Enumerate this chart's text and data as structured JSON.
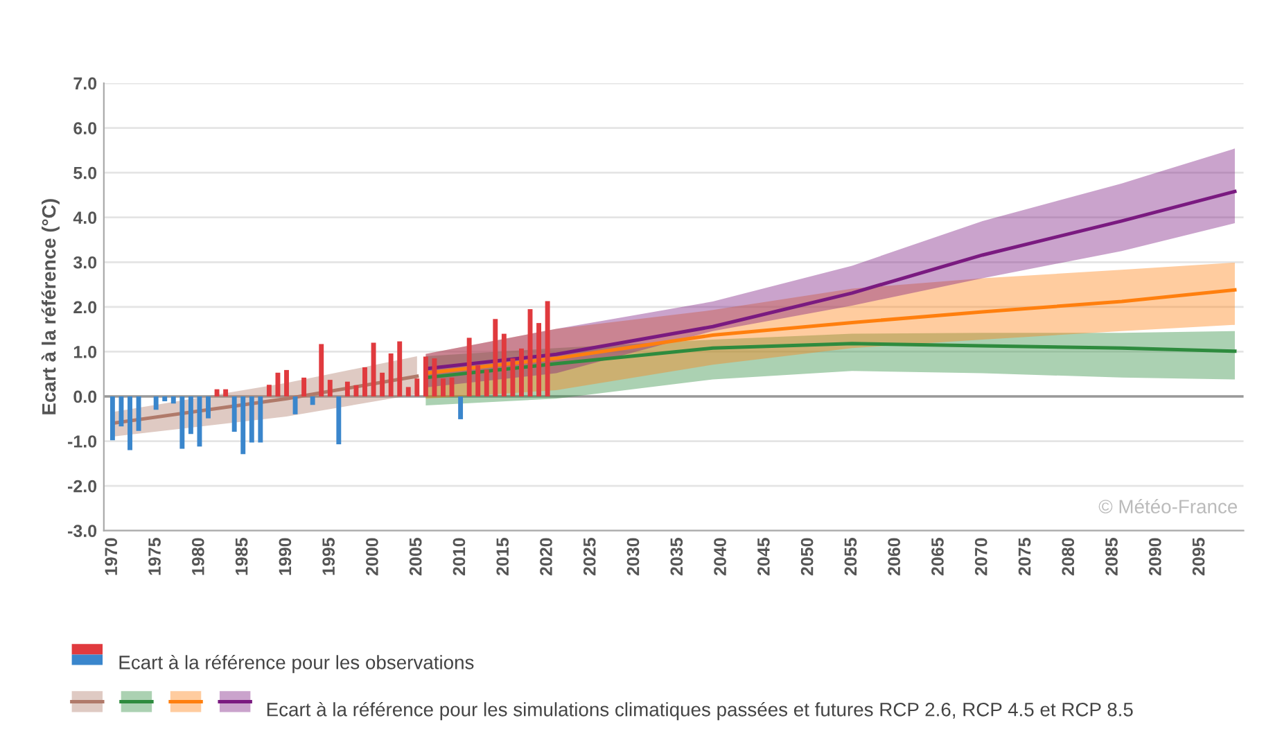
{
  "chart_data": {
    "type": "line",
    "ylabel": "Ecart à la référence (°C)",
    "xlim": [
      1969,
      2100
    ],
    "xticks": [
      1970,
      1975,
      1980,
      1985,
      1990,
      1995,
      2000,
      2005,
      2010,
      2015,
      2020,
      2025,
      2030,
      2035,
      2040,
      2045,
      2050,
      2055,
      2060,
      2065,
      2070,
      2075,
      2080,
      2085,
      2090,
      2095
    ],
    "ylim": [
      -3,
      7
    ],
    "yticks": [
      {
        "value": -3,
        "label": "-3.0"
      },
      {
        "value": -2,
        "label": "-2.0"
      },
      {
        "value": -1,
        "label": "-1.0"
      },
      {
        "value": 0,
        "label": "0.0"
      },
      {
        "value": 1,
        "label": "1.0"
      },
      {
        "value": 2,
        "label": "2.0"
      },
      {
        "value": 3,
        "label": "3.0"
      },
      {
        "value": 4,
        "label": "4.0"
      },
      {
        "value": 5,
        "label": "5.0"
      },
      {
        "value": 6,
        "label": "6.0"
      },
      {
        "value": 7,
        "label": "7.0"
      }
    ],
    "grid": "y",
    "legend": "bottom",
    "ref_lines": [
      {
        "axis": "y",
        "value": 0,
        "color": "#999999"
      }
    ],
    "annotations": [
      "© Météo-France"
    ],
    "series": [
      {
        "type": "bar",
        "name": "Ecart à la référence pour les observations",
        "x": [
          1970,
          1971,
          1972,
          1973,
          1974,
          1975,
          1976,
          1977,
          1978,
          1979,
          1980,
          1981,
          1982,
          1983,
          1984,
          1985,
          1986,
          1987,
          1988,
          1989,
          1990,
          1991,
          1992,
          1993,
          1994,
          1995,
          1996,
          1997,
          1998,
          1999,
          2000,
          2001,
          2002,
          2003,
          2004,
          2005,
          2006,
          2007,
          2008,
          2009,
          2010,
          2011,
          2012,
          2013,
          2014,
          2015,
          2016,
          2017,
          2018,
          2019,
          2020
        ],
        "values": [
          -0.98,
          -0.67,
          -1.2,
          -0.77,
          0.0,
          -0.3,
          -0.11,
          -0.16,
          -1.17,
          -0.84,
          -1.12,
          -0.49,
          0.16,
          0.16,
          -0.79,
          -1.29,
          -1.03,
          -1.03,
          0.26,
          0.53,
          0.59,
          -0.4,
          0.42,
          -0.19,
          1.17,
          0.37,
          -1.07,
          0.33,
          0.25,
          0.65,
          1.2,
          0.53,
          0.96,
          1.23,
          0.21,
          0.4,
          0.89,
          0.85,
          0.4,
          0.42,
          -0.51,
          1.31,
          0.7,
          0.6,
          1.73,
          1.4,
          0.85,
          1.07,
          1.95,
          1.64,
          2.13
        ],
        "colors": [
          "#3a86cc",
          "#3a86cc",
          "#3a86cc",
          "#3a86cc",
          "#3a86cc",
          "#3a86cc",
          "#3a86cc",
          "#3a86cc",
          "#3a86cc",
          "#3a86cc",
          "#3a86cc",
          "#3a86cc",
          "#e03a3e",
          "#e03a3e",
          "#3a86cc",
          "#3a86cc",
          "#3a86cc",
          "#3a86cc",
          "#e03a3e",
          "#e03a3e",
          "#e03a3e",
          "#3a86cc",
          "#e03a3e",
          "#3a86cc",
          "#e03a3e",
          "#e03a3e",
          "#3a86cc",
          "#e03a3e",
          "#e03a3e",
          "#e03a3e",
          "#e03a3e",
          "#e03a3e",
          "#e03a3e",
          "#e03a3e",
          "#e03a3e",
          "#e03a3e",
          "#e03a3e",
          "#e03a3e",
          "#e03a3e",
          "#e03a3e",
          "#3a86cc",
          "#e03a3e",
          "#e03a3e",
          "#e03a3e",
          "#e03a3e",
          "#e03a3e",
          "#e03a3e",
          "#e03a3e",
          "#e03a3e",
          "#e03a3e",
          "#e03a3e"
        ]
      },
      {
        "color": "#b07a6a",
        "x": [
          1970,
          1990,
          2005
        ],
        "values": [
          -0.6,
          -0.05,
          0.45
        ],
        "lower": [
          -0.9,
          -0.45,
          0.05
        ],
        "upper": [
          -0.35,
          0.3,
          0.9
        ]
      },
      {
        "color": "#2e8b3e",
        "x": [
          2006,
          2021,
          2039,
          2055,
          2070,
          2086,
          2099
        ],
        "values": [
          0.42,
          0.73,
          1.08,
          1.18,
          1.13,
          1.08,
          1.01
        ],
        "lower": [
          -0.2,
          -0.05,
          0.38,
          0.57,
          0.52,
          0.42,
          0.38
        ],
        "upper": [
          0.9,
          1.08,
          1.27,
          1.4,
          1.42,
          1.42,
          1.46
        ]
      },
      {
        "color": "#ff7f0e",
        "x": [
          2006,
          2021,
          2039,
          2055,
          2070,
          2086,
          2099
        ],
        "values": [
          0.52,
          0.85,
          1.37,
          1.65,
          1.89,
          2.12,
          2.38
        ],
        "lower": [
          -0.05,
          0.14,
          0.71,
          1.08,
          1.27,
          1.46,
          1.6
        ],
        "upper": [
          0.95,
          1.51,
          1.93,
          2.41,
          2.64,
          2.83,
          2.99
        ]
      },
      {
        "name": "Ecart à la référence pour les simulations climatiques passées et futures RCP 2.6, RCP 4.5 et RCP 8.5",
        "color": "#7a1a80",
        "x": [
          2006,
          2021,
          2039,
          2055,
          2070,
          2086,
          2099
        ],
        "values": [
          0.62,
          0.94,
          1.56,
          2.31,
          3.16,
          3.92,
          4.58
        ],
        "lower": [
          0.2,
          0.52,
          1.46,
          2.03,
          2.64,
          3.25,
          3.87
        ],
        "upper": [
          0.95,
          1.51,
          2.12,
          2.92,
          3.92,
          4.76,
          5.54
        ]
      }
    ]
  }
}
